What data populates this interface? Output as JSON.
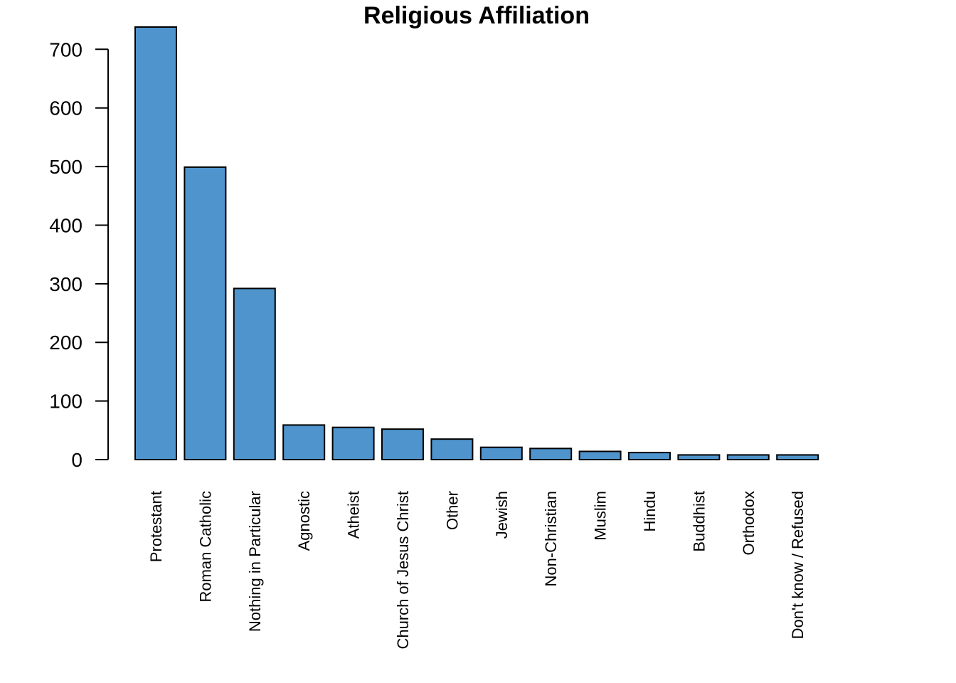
{
  "chart_data": {
    "type": "bar",
    "title": "Religious Affiliation",
    "xlabel": "",
    "ylabel": "",
    "categories": [
      "Protestant",
      "Roman Catholic",
      "Nothing in Particular",
      "Agnostic",
      "Atheist",
      "Church of Jesus Christ",
      "Other",
      "Jewish",
      "Non-Christian",
      "Muslim",
      "Hindu",
      "Buddhist",
      "Orthodox",
      "Don't know / Refused"
    ],
    "values": [
      738,
      499,
      292,
      59,
      55,
      52,
      35,
      21,
      19,
      14,
      12,
      8,
      8,
      8
    ],
    "yticks": [
      0,
      100,
      200,
      300,
      400,
      500,
      600,
      700
    ],
    "ylim": [
      0,
      738
    ],
    "bar_color": "#4f94cd",
    "grid": false,
    "legend": "none"
  }
}
